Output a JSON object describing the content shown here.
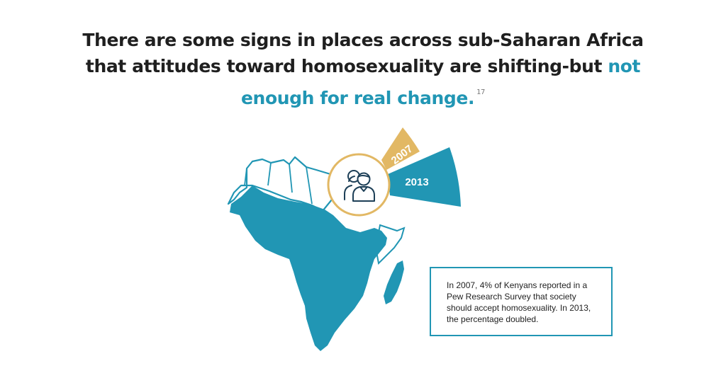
{
  "headline": {
    "text_main": "There are some signs in places across sub-Saharan Africa that attitudes toward homosexuality are shifting-but",
    "text_accent": "not enough for real change.",
    "footnote": "17"
  },
  "graphic": {
    "label_2007": "2007",
    "label_2013": "2013",
    "people_icon": "people-icon",
    "color_teal": "#2196b4",
    "color_gold": "#e2b864"
  },
  "infobox": {
    "text": "In 2007, 4% of Kenyans reported in a Pew Research Survey that society should accept homosexuality. In 2013, the percentage doubled."
  }
}
